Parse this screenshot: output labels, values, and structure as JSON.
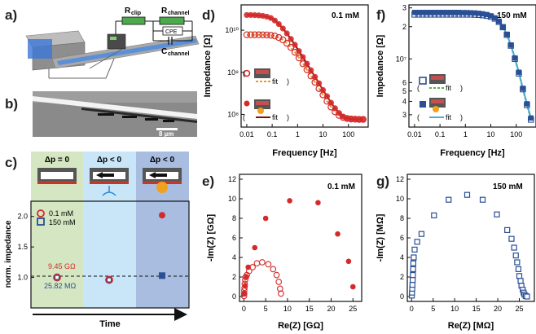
{
  "panel_labels": {
    "a": "a)",
    "b": "b)",
    "c": "c)",
    "d": "d)",
    "e": "e)",
    "f": "f)",
    "g": "g)"
  },
  "circuit": {
    "r_clip": "R",
    "r_clip_sub": "clip",
    "r_channel": "R",
    "r_channel_sub": "channel",
    "cpe": "CPE",
    "c_channel": "C",
    "c_channel_sub": "channel"
  },
  "scale_bar": "8 µm",
  "panel_c": {
    "conditions": [
      "Δp = 0",
      "Δp < 0",
      "Δp < 0"
    ],
    "legend": [
      "0.1 mM",
      "150 mM"
    ],
    "ylabel": "norm. impedance",
    "xlabel": "Time",
    "annot_red": "9.45 GΩ",
    "annot_blue": "25.82 MΩ"
  },
  "fit_label": "fit",
  "colors": {
    "red": "#d42a2a",
    "blue": "#2a4f95",
    "orange_fit": "#e39a2c",
    "dark_red_fit": "#7a1010",
    "green_fit": "#5cae4c",
    "light_blue_fit": "#4aaed6",
    "bg_green": "#d5e7c2",
    "bg_lightblue": "#c8e6f7",
    "bg_blue": "#a8bde0"
  },
  "chart_data": [
    {
      "id": "c",
      "type": "scatter",
      "ylabel": "norm. impedance",
      "xlabel": "Time",
      "ylim": [
        0.5,
        2.25
      ],
      "yticks": [
        "1.0",
        "1.5",
        "2.0"
      ],
      "categories": [
        "Δp = 0",
        "Δp < 0",
        "Δp < 0"
      ],
      "series": [
        {
          "name": "0.1 mM",
          "values": [
            1.0,
            0.96,
            2.02
          ]
        },
        {
          "name": "150 mM",
          "values": [
            1.0,
            0.96,
            1.03
          ]
        }
      ]
    },
    {
      "id": "d",
      "type": "line",
      "title": "0.1 mM",
      "xlabel": "Frequency [Hz]",
      "ylabel": "Impedance [Ω]",
      "xscale": "log",
      "yscale": "log",
      "xlim": [
        0.006,
        600
      ],
      "ylim": [
        50000000.0,
        40000000000.0
      ],
      "xticks": [
        "0.01",
        "0.1",
        "1",
        "10",
        "100"
      ],
      "yticks": [
        "10⁸",
        "10⁹",
        "10¹⁰"
      ],
      "series": [
        {
          "values": [
            [
              0.01,
              7800000000.0
            ],
            [
              0.0144,
              7800000000.0
            ],
            [
              0.0207,
              7800000000.0
            ],
            [
              0.0298,
              7790000000.0
            ],
            [
              0.0428,
              7770000000.0
            ],
            [
              0.0616,
              7720000000.0
            ],
            [
              0.0886,
              7600000000.0
            ],
            [
              0.127,
              7300000000.0
            ],
            [
              0.183,
              6700000000.0
            ],
            [
              0.264,
              5900000000.0
            ],
            [
              0.379,
              4900000000.0
            ],
            [
              0.546,
              3900000000.0
            ],
            [
              0.785,
              3000000000.0
            ],
            [
              1.13,
              2200000000.0
            ],
            [
              1.62,
              1600000000.0
            ],
            [
              2.34,
              1150000000.0
            ],
            [
              3.36,
              820000000.0
            ],
            [
              4.83,
              580000000.0
            ],
            [
              6.95,
              410000000.0
            ],
            [
              10,
              290000000.0
            ],
            [
              14.4,
              205000000.0
            ],
            [
              20.7,
              150000000.0
            ],
            [
              29.8,
              115000000.0
            ],
            [
              42.8,
              95000000.0
            ],
            [
              61.6,
              85000000.0
            ],
            [
              88.6,
              80000000.0
            ],
            [
              127,
              78000000.0
            ],
            [
              183,
              77000000.0
            ],
            [
              264,
              76000000.0
            ],
            [
              379,
              76000000.0
            ]
          ]
        },
        {
          "values": [
            [
              0.01,
              23000000000.0
            ],
            [
              0.0144,
              23000000000.0
            ],
            [
              0.0207,
              22800000000.0
            ],
            [
              0.0298,
              22500000000.0
            ],
            [
              0.0428,
              22000000000.0
            ],
            [
              0.0616,
              21000000000.0
            ],
            [
              0.0886,
              19500000000.0
            ],
            [
              0.127,
              17000000000.0
            ],
            [
              0.183,
              14000000000.0
            ],
            [
              0.264,
              11000000000.0
            ],
            [
              0.379,
              8400000000.0
            ],
            [
              0.546,
              6200000000.0
            ],
            [
              0.785,
              4500000000.0
            ],
            [
              1.13,
              3200000000.0
            ],
            [
              1.62,
              2300000000.0
            ],
            [
              2.34,
              1600000000.0
            ],
            [
              3.36,
              1120000000.0
            ],
            [
              4.83,
              780000000.0
            ],
            [
              6.95,
              550000000.0
            ],
            [
              10,
              380000000.0
            ],
            [
              14.4,
              270000000.0
            ],
            [
              20.7,
              190000000.0
            ],
            [
              29.8,
              140000000.0
            ],
            [
              42.8,
              108000000.0
            ],
            [
              61.6,
              89000000.0
            ],
            [
              88.6,
              81000000.0
            ],
            [
              127,
              78000000.0
            ],
            [
              183,
              77000000.0
            ],
            [
              264,
              76000000.0
            ],
            [
              379,
              76000000.0
            ]
          ]
        }
      ]
    },
    {
      "id": "f",
      "type": "line",
      "title": "150 mM",
      "xlabel": "Frequency [Hz]",
      "ylabel": "Impedance [Ω]",
      "xscale": "log",
      "yscale": "log",
      "xlim": [
        0.006,
        600
      ],
      "ylim": [
        2300000.0,
        32000000.0
      ],
      "xticks": [
        "0.01",
        "0.1",
        "1",
        "10",
        "100"
      ],
      "yticks": [
        "3",
        "4",
        "5",
        "6",
        "10⁷",
        "2",
        "3"
      ],
      "series": [
        {
          "values": [
            [
              0.01,
              26000000.0
            ],
            [
              0.0144,
              26000000.0
            ],
            [
              0.0207,
              26000000.0
            ],
            [
              0.0298,
              26000000.0
            ],
            [
              0.0428,
              26000000.0
            ],
            [
              0.0616,
              26000000.0
            ],
            [
              0.0886,
              26000000.0
            ],
            [
              0.127,
              26000000.0
            ],
            [
              0.183,
              26000000.0
            ],
            [
              0.264,
              26000000.0
            ],
            [
              0.379,
              26000000.0
            ],
            [
              0.546,
              26000000.0
            ],
            [
              0.785,
              26000000.0
            ],
            [
              1.13,
              26000000.0
            ],
            [
              1.62,
              26000000.0
            ],
            [
              2.34,
              25900000.0
            ],
            [
              3.36,
              25800000.0
            ],
            [
              4.83,
              25600000.0
            ],
            [
              6.95,
              25300000.0
            ],
            [
              10,
              24800000.0
            ],
            [
              14.4,
              23800000.0
            ],
            [
              20.7,
              22200000.0
            ],
            [
              29.8,
              19800000.0
            ],
            [
              42.8,
              16800000.0
            ],
            [
              61.6,
              13300000.0
            ],
            [
              88.6,
              10000000.0
            ],
            [
              127,
              7300000.0
            ],
            [
              183,
              5200000.0
            ],
            [
              264,
              3700000.0
            ],
            [
              379,
              2700000.0
            ]
          ]
        },
        {
          "values": [
            [
              0.01,
              27200000.0
            ],
            [
              0.0144,
              27200000.0
            ],
            [
              0.0207,
              27200000.0
            ],
            [
              0.0298,
              27200000.0
            ],
            [
              0.0428,
              27200000.0
            ],
            [
              0.0616,
              27200000.0
            ],
            [
              0.0886,
              27200000.0
            ],
            [
              0.127,
              27200000.0
            ],
            [
              0.183,
              27200000.0
            ],
            [
              0.264,
              27200000.0
            ],
            [
              0.379,
              27200000.0
            ],
            [
              0.546,
              27200000.0
            ],
            [
              0.785,
              27100000.0
            ],
            [
              1.13,
              27100000.0
            ],
            [
              1.62,
              27000000.0
            ],
            [
              2.34,
              26900000.0
            ],
            [
              3.36,
              26700000.0
            ],
            [
              4.83,
              26400000.0
            ],
            [
              6.95,
              26000000.0
            ],
            [
              10,
              25300000.0
            ],
            [
              14.4,
              24200000.0
            ],
            [
              20.7,
              22500000.0
            ],
            [
              29.8,
              20000000.0
            ],
            [
              42.8,
              17000000.0
            ],
            [
              61.6,
              13500000.0
            ],
            [
              88.6,
              10200000.0
            ],
            [
              127,
              7500000.0
            ],
            [
              183,
              5300000.0
            ],
            [
              264,
              3800000.0
            ],
            [
              379,
              2800000.0
            ]
          ]
        }
      ]
    },
    {
      "id": "e",
      "type": "scatter",
      "title": "0.1 mM",
      "xlabel": "Re(Z)  [GΩ]",
      "ylabel": "-Im(Z)  [GΩ]",
      "xlim": [
        -1,
        27
      ],
      "ylim": [
        -0.5,
        12.5
      ],
      "xticks": [
        "0",
        "5",
        "10",
        "15",
        "20",
        "25"
      ],
      "yticks": [
        "0",
        "2",
        "4",
        "6",
        "8",
        "10",
        "12"
      ],
      "series": [
        {
          "values": [
            [
              0.05,
              0.05
            ],
            [
              0.08,
              0.3
            ],
            [
              0.1,
              0.6
            ],
            [
              0.15,
              0.9
            ],
            [
              0.2,
              1.3
            ],
            [
              0.3,
              1.7
            ],
            [
              0.4,
              2.0
            ],
            [
              0.7,
              2.2
            ],
            [
              1.2,
              2.6
            ],
            [
              2.0,
              3.0
            ],
            [
              3.0,
              3.4
            ],
            [
              4.2,
              3.5
            ],
            [
              5.6,
              3.3
            ],
            [
              6.7,
              2.8
            ],
            [
              7.5,
              2.2
            ],
            [
              8.0,
              1.5
            ],
            [
              8.3,
              0.8
            ],
            [
              8.5,
              0.3
            ]
          ]
        },
        {
          "values": [
            [
              0.1,
              0.3
            ],
            [
              0.3,
              1.1
            ],
            [
              0.6,
              2.0
            ],
            [
              1.0,
              3.0
            ],
            [
              2.5,
              5.0
            ],
            [
              5.0,
              8.0
            ],
            [
              10.5,
              9.8
            ],
            [
              17.0,
              9.6
            ],
            [
              21.5,
              6.4
            ],
            [
              24.0,
              3.6
            ],
            [
              25.0,
              1.0
            ]
          ]
        }
      ]
    },
    {
      "id": "g",
      "type": "scatter",
      "title": "150 mM",
      "xlabel": "Re(Z)  [MΩ]",
      "ylabel": "-Im(Z)  [MΩ]",
      "xlim": [
        -1,
        28.5
      ],
      "ylim": [
        -0.5,
        12.5
      ],
      "xticks": [
        "0",
        "5",
        "10",
        "15",
        "20",
        "25"
      ],
      "yticks": [
        "0",
        "2",
        "4",
        "6",
        "8",
        "10",
        "12"
      ],
      "series": [
        {
          "values": [
            [
              0.05,
              0.1
            ],
            [
              0.1,
              0.4
            ],
            [
              0.15,
              0.8
            ],
            [
              0.2,
              1.2
            ],
            [
              0.25,
              1.7
            ],
            [
              0.3,
              2.2
            ],
            [
              0.35,
              2.8
            ],
            [
              0.4,
              3.4
            ],
            [
              0.5,
              4.0
            ],
            [
              0.7,
              4.8
            ],
            [
              1.3,
              5.6
            ],
            [
              2.3,
              6.4
            ],
            [
              5.2,
              8.3
            ],
            [
              8.6,
              9.9
            ],
            [
              12.9,
              10.4
            ],
            [
              16.5,
              9.9
            ],
            [
              19.8,
              8.4
            ],
            [
              22.2,
              6.8
            ],
            [
              23.2,
              5.9
            ],
            [
              23.8,
              5.0
            ],
            [
              24.2,
              4.2
            ],
            [
              24.5,
              3.5
            ],
            [
              24.8,
              2.8
            ],
            [
              25.0,
              2.1
            ],
            [
              25.3,
              1.6
            ],
            [
              25.5,
              1.1
            ],
            [
              25.8,
              0.7
            ],
            [
              26.0,
              0.4
            ],
            [
              26.2,
              0.2
            ],
            [
              26.5,
              0.05
            ],
            [
              26.8,
              0.0
            ]
          ]
        }
      ]
    }
  ]
}
